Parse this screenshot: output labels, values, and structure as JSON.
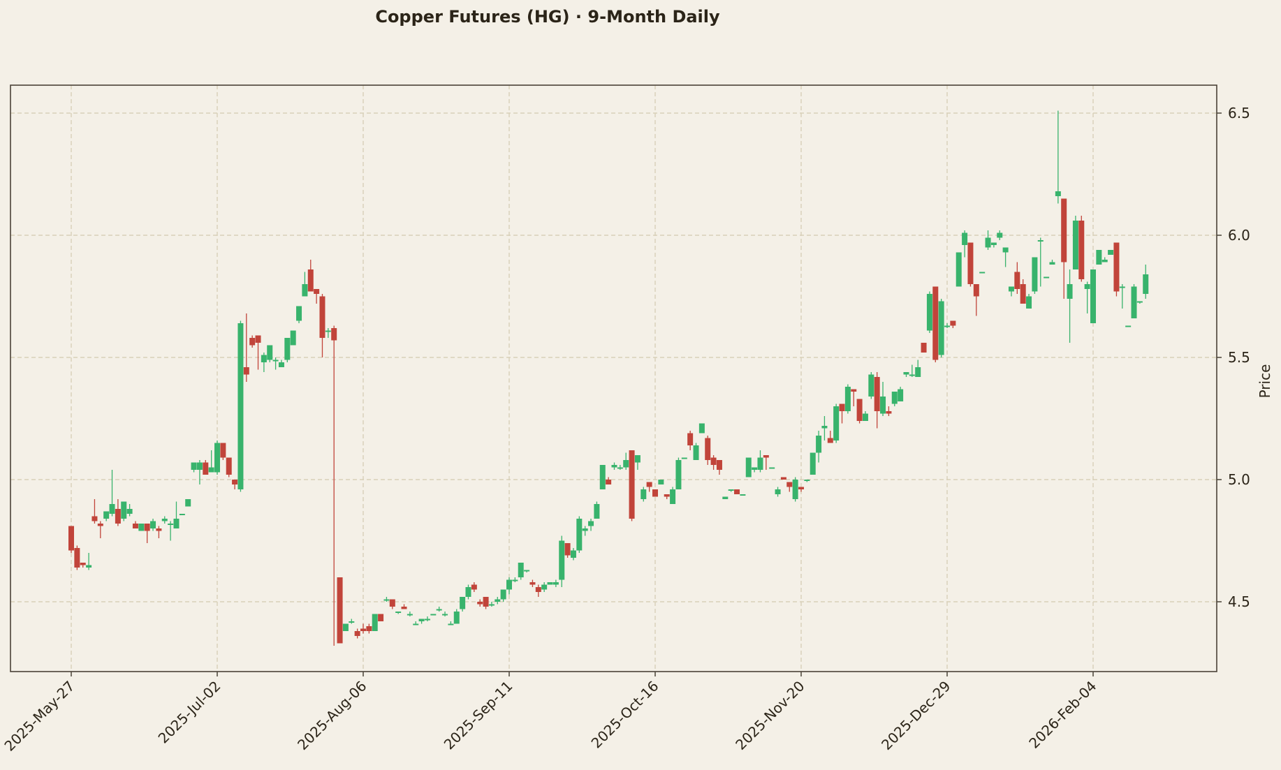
{
  "chart_data": {
    "type": "candlestick",
    "title": "Copper Futures (HG)  ·  9-Month Daily",
    "xlabel": "",
    "ylabel": "Price",
    "ylim": [
      4.2,
      6.62
    ],
    "yticks": [
      4.5,
      5.0,
      5.5,
      6.0,
      6.5
    ],
    "ytick_labels": [
      "4.5",
      "5.0",
      "5.5",
      "6.0",
      "6.5"
    ],
    "xtick_labels": [
      "2025-May-27",
      "2025-Jul-02",
      "2025-Aug-06",
      "2025-Sep-11",
      "2025-Oct-16",
      "2025-Nov-20",
      "2025-Dec-29",
      "2026-Feb-04"
    ],
    "xtick_index": [
      0,
      25,
      50,
      75,
      100,
      125,
      150,
      175
    ],
    "grid": true,
    "y_axis_side": "right",
    "colors": {
      "up": "#38b36c",
      "down": "#c1443a",
      "background": "#f4f0e7",
      "grid": "#d8cfb8",
      "axis": "#4a4237"
    },
    "ohlc": [
      [
        4.81,
        4.81,
        4.7,
        4.71
      ],
      [
        4.72,
        4.73,
        4.63,
        4.64
      ],
      [
        4.66,
        4.66,
        4.64,
        4.65
      ],
      [
        4.64,
        4.7,
        4.63,
        4.65
      ],
      [
        4.85,
        4.92,
        4.82,
        4.83
      ],
      [
        4.82,
        4.83,
        4.76,
        4.81
      ],
      [
        4.84,
        4.87,
        4.83,
        4.87
      ],
      [
        4.86,
        5.04,
        4.85,
        4.9
      ],
      [
        4.88,
        4.92,
        4.81,
        4.82
      ],
      [
        4.84,
        4.91,
        4.83,
        4.91
      ],
      [
        4.86,
        4.9,
        4.85,
        4.88
      ],
      [
        4.82,
        4.83,
        4.8,
        4.8
      ],
      [
        4.79,
        4.82,
        4.79,
        4.82
      ],
      [
        4.82,
        4.82,
        4.74,
        4.79
      ],
      [
        4.8,
        4.84,
        4.79,
        4.83
      ],
      [
        4.8,
        4.81,
        4.76,
        4.79
      ],
      [
        4.83,
        4.85,
        4.82,
        4.84
      ],
      [
        4.82,
        4.83,
        4.75,
        4.82
      ],
      [
        4.8,
        4.91,
        4.8,
        4.84
      ],
      [
        4.86,
        4.86,
        4.86,
        4.86
      ],
      [
        4.89,
        4.92,
        4.89,
        4.92
      ],
      [
        5.04,
        5.07,
        5.03,
        5.07
      ],
      [
        5.04,
        5.08,
        4.98,
        5.07
      ],
      [
        5.07,
        5.08,
        5.02,
        5.02
      ],
      [
        5.03,
        5.12,
        5.03,
        5.05
      ],
      [
        5.03,
        5.16,
        5.02,
        5.15
      ],
      [
        5.15,
        5.15,
        5.08,
        5.09
      ],
      [
        5.09,
        5.09,
        5.01,
        5.02
      ],
      [
        5.0,
        5.0,
        4.96,
        4.98
      ],
      [
        4.96,
        5.65,
        4.95,
        5.64
      ],
      [
        5.46,
        5.68,
        5.4,
        5.43
      ],
      [
        5.58,
        5.59,
        5.54,
        5.55
      ],
      [
        5.59,
        5.59,
        5.45,
        5.56
      ],
      [
        5.48,
        5.52,
        5.44,
        5.51
      ],
      [
        5.49,
        5.55,
        5.48,
        5.55
      ],
      [
        5.49,
        5.5,
        5.45,
        5.49
      ],
      [
        5.46,
        5.49,
        5.46,
        5.48
      ],
      [
        5.49,
        5.58,
        5.48,
        5.58
      ],
      [
        5.55,
        5.61,
        5.55,
        5.61
      ],
      [
        5.65,
        5.71,
        5.64,
        5.71
      ],
      [
        5.75,
        5.85,
        5.75,
        5.8
      ],
      [
        5.86,
        5.9,
        5.78,
        5.77
      ],
      [
        5.78,
        5.78,
        5.72,
        5.76
      ],
      [
        5.75,
        5.76,
        5.5,
        5.58
      ],
      [
        5.61,
        5.62,
        5.58,
        5.61
      ],
      [
        5.62,
        5.63,
        4.32,
        5.57
      ],
      [
        4.6,
        4.6,
        4.33,
        4.33
      ],
      [
        4.38,
        4.41,
        4.38,
        4.41
      ],
      [
        4.42,
        4.43,
        4.41,
        4.42
      ],
      [
        4.38,
        4.39,
        4.35,
        4.36
      ],
      [
        4.39,
        4.41,
        4.37,
        4.38
      ],
      [
        4.4,
        4.41,
        4.37,
        4.38
      ],
      [
        4.38,
        4.45,
        4.38,
        4.45
      ],
      [
        4.45,
        4.45,
        4.42,
        4.42
      ],
      [
        4.51,
        4.52,
        4.5,
        4.51
      ],
      [
        4.51,
        4.51,
        4.47,
        4.48
      ],
      [
        4.46,
        4.46,
        4.45,
        4.46
      ],
      [
        4.48,
        4.49,
        4.47,
        4.47
      ],
      [
        4.45,
        4.46,
        4.44,
        4.45
      ],
      [
        4.41,
        4.42,
        4.41,
        4.41
      ],
      [
        4.42,
        4.43,
        4.41,
        4.43
      ],
      [
        4.43,
        4.44,
        4.42,
        4.43
      ],
      [
        4.45,
        4.45,
        4.45,
        4.45
      ],
      [
        4.47,
        4.48,
        4.46,
        4.47
      ],
      [
        4.45,
        4.46,
        4.44,
        4.45
      ],
      [
        4.41,
        4.42,
        4.41,
        4.41
      ],
      [
        4.41,
        4.47,
        4.41,
        4.46
      ],
      [
        4.47,
        4.52,
        4.46,
        4.52
      ],
      [
        4.52,
        4.57,
        4.51,
        4.56
      ],
      [
        4.57,
        4.58,
        4.54,
        4.55
      ],
      [
        4.5,
        4.51,
        4.48,
        4.49
      ],
      [
        4.52,
        4.52,
        4.47,
        4.48
      ],
      [
        4.49,
        4.5,
        4.48,
        4.49
      ],
      [
        4.5,
        4.52,
        4.49,
        4.51
      ],
      [
        4.51,
        4.55,
        4.5,
        4.55
      ],
      [
        4.55,
        4.6,
        4.53,
        4.59
      ],
      [
        4.59,
        4.6,
        4.58,
        4.59
      ],
      [
        4.6,
        4.66,
        4.59,
        4.66
      ],
      [
        4.63,
        4.63,
        4.62,
        4.63
      ],
      [
        4.58,
        4.59,
        4.56,
        4.57
      ],
      [
        4.56,
        4.57,
        4.52,
        4.54
      ],
      [
        4.55,
        4.58,
        4.54,
        4.57
      ],
      [
        4.57,
        4.58,
        4.57,
        4.58
      ],
      [
        4.57,
        4.59,
        4.56,
        4.58
      ],
      [
        4.59,
        4.77,
        4.56,
        4.75
      ],
      [
        4.74,
        4.74,
        4.68,
        4.69
      ],
      [
        4.68,
        4.72,
        4.67,
        4.71
      ],
      [
        4.71,
        4.85,
        4.7,
        4.84
      ],
      [
        4.79,
        4.81,
        4.77,
        4.8
      ],
      [
        4.81,
        4.84,
        4.79,
        4.83
      ],
      [
        4.84,
        4.91,
        4.84,
        4.9
      ],
      [
        4.96,
        5.06,
        4.96,
        5.06
      ],
      [
        5.0,
        5.01,
        4.98,
        4.98
      ],
      [
        5.05,
        5.07,
        5.04,
        5.06
      ],
      [
        5.05,
        5.06,
        5.04,
        5.05
      ],
      [
        5.05,
        5.11,
        5.04,
        5.08
      ],
      [
        5.12,
        5.12,
        4.83,
        4.84
      ],
      [
        5.07,
        5.1,
        5.04,
        5.1
      ],
      [
        4.92,
        4.97,
        4.91,
        4.96
      ],
      [
        4.99,
        4.99,
        4.95,
        4.97
      ],
      [
        4.96,
        4.96,
        4.93,
        4.93
      ],
      [
        4.98,
        5.0,
        4.98,
        5.0
      ],
      [
        4.94,
        4.94,
        4.92,
        4.93
      ],
      [
        4.9,
        4.97,
        4.9,
        4.96
      ],
      [
        4.96,
        5.09,
        4.96,
        5.08
      ],
      [
        5.09,
        5.09,
        5.09,
        5.09
      ],
      [
        5.19,
        5.2,
        5.12,
        5.14
      ],
      [
        5.08,
        5.15,
        5.08,
        5.14
      ],
      [
        5.19,
        5.23,
        5.19,
        5.23
      ],
      [
        5.17,
        5.18,
        5.06,
        5.08
      ],
      [
        5.09,
        5.1,
        5.04,
        5.06
      ],
      [
        5.08,
        5.08,
        5.02,
        5.04
      ],
      [
        4.92,
        4.93,
        4.92,
        4.93
      ],
      [
        4.96,
        4.96,
        4.95,
        4.96
      ],
      [
        4.96,
        4.96,
        4.94,
        4.94
      ],
      [
        4.94,
        4.94,
        4.94,
        4.94
      ],
      [
        5.01,
        5.09,
        5.01,
        5.09
      ],
      [
        5.04,
        5.05,
        5.03,
        5.05
      ],
      [
        5.04,
        5.12,
        5.03,
        5.09
      ],
      [
        5.1,
        5.1,
        5.04,
        5.09
      ],
      [
        5.05,
        5.05,
        5.05,
        5.05
      ],
      [
        4.94,
        4.97,
        4.93,
        4.96
      ],
      [
        5.01,
        5.01,
        5.0,
        5.0
      ],
      [
        4.99,
        4.99,
        4.95,
        4.97
      ],
      [
        4.92,
        5.01,
        4.91,
        5.0
      ],
      [
        4.97,
        4.97,
        4.95,
        4.96
      ],
      [
        5.0,
        5.0,
        4.99,
        5.0
      ],
      [
        5.02,
        5.11,
        5.02,
        5.11
      ],
      [
        5.11,
        5.2,
        5.07,
        5.18
      ],
      [
        5.21,
        5.26,
        5.16,
        5.22
      ],
      [
        5.17,
        5.2,
        5.15,
        5.15
      ],
      [
        5.16,
        5.31,
        5.15,
        5.3
      ],
      [
        5.31,
        5.31,
        5.23,
        5.28
      ],
      [
        5.28,
        5.39,
        5.27,
        5.38
      ],
      [
        5.37,
        5.37,
        5.3,
        5.36
      ],
      [
        5.33,
        5.33,
        5.23,
        5.24
      ],
      [
        5.24,
        5.28,
        5.24,
        5.27
      ],
      [
        5.34,
        5.44,
        5.33,
        5.43
      ],
      [
        5.42,
        5.44,
        5.21,
        5.28
      ],
      [
        5.27,
        5.4,
        5.26,
        5.34
      ],
      [
        5.28,
        5.3,
        5.26,
        5.27
      ],
      [
        5.31,
        5.36,
        5.3,
        5.36
      ],
      [
        5.32,
        5.38,
        5.32,
        5.37
      ],
      [
        5.43,
        5.44,
        5.42,
        5.44
      ],
      [
        5.43,
        5.47,
        5.42,
        5.43
      ],
      [
        5.42,
        5.49,
        5.42,
        5.46
      ],
      [
        5.56,
        5.56,
        5.52,
        5.52
      ],
      [
        5.61,
        5.77,
        5.6,
        5.76
      ],
      [
        5.79,
        5.79,
        5.48,
        5.49
      ],
      [
        5.51,
        5.74,
        5.5,
        5.73
      ],
      [
        5.63,
        5.64,
        5.62,
        5.63
      ],
      [
        5.65,
        5.65,
        5.62,
        5.63
      ],
      [
        5.79,
        5.93,
        5.79,
        5.93
      ],
      [
        5.96,
        6.02,
        5.91,
        6.01
      ],
      [
        5.97,
        5.97,
        5.79,
        5.8
      ],
      [
        5.8,
        5.8,
        5.67,
        5.75
      ],
      [
        5.85,
        5.85,
        5.85,
        5.85
      ],
      [
        5.95,
        6.02,
        5.94,
        5.99
      ],
      [
        5.96,
        5.97,
        5.95,
        5.97
      ],
      [
        5.99,
        6.02,
        5.98,
        6.01
      ],
      [
        5.93,
        5.95,
        5.87,
        5.95
      ],
      [
        5.77,
        5.79,
        5.75,
        5.79
      ],
      [
        5.85,
        5.89,
        5.76,
        5.78
      ],
      [
        5.8,
        5.82,
        5.72,
        5.72
      ],
      [
        5.7,
        5.76,
        5.7,
        5.75
      ],
      [
        5.77,
        5.91,
        5.76,
        5.91
      ],
      [
        5.98,
        5.99,
        5.79,
        5.98
      ],
      [
        5.83,
        5.83,
        5.83,
        5.83
      ],
      [
        5.88,
        5.9,
        5.88,
        5.89
      ],
      [
        6.16,
        6.51,
        6.13,
        6.18
      ],
      [
        6.15,
        6.15,
        5.74,
        5.89
      ],
      [
        5.74,
        5.86,
        5.56,
        5.8
      ],
      [
        5.86,
        6.08,
        5.86,
        6.06
      ],
      [
        6.06,
        6.08,
        5.81,
        5.82
      ],
      [
        5.78,
        5.81,
        5.68,
        5.8
      ],
      [
        5.64,
        5.86,
        5.64,
        5.86
      ],
      [
        5.88,
        5.94,
        5.88,
        5.94
      ],
      [
        5.89,
        5.91,
        5.89,
        5.9
      ],
      [
        5.92,
        5.94,
        5.92,
        5.94
      ],
      [
        5.97,
        5.97,
        5.75,
        5.77
      ],
      [
        5.79,
        5.8,
        5.7,
        5.79
      ],
      [
        5.63,
        5.63,
        5.63,
        5.63
      ],
      [
        5.66,
        5.8,
        5.66,
        5.79
      ],
      [
        5.73,
        5.73,
        5.72,
        5.73
      ],
      [
        5.76,
        5.88,
        5.74,
        5.84
      ]
    ]
  }
}
